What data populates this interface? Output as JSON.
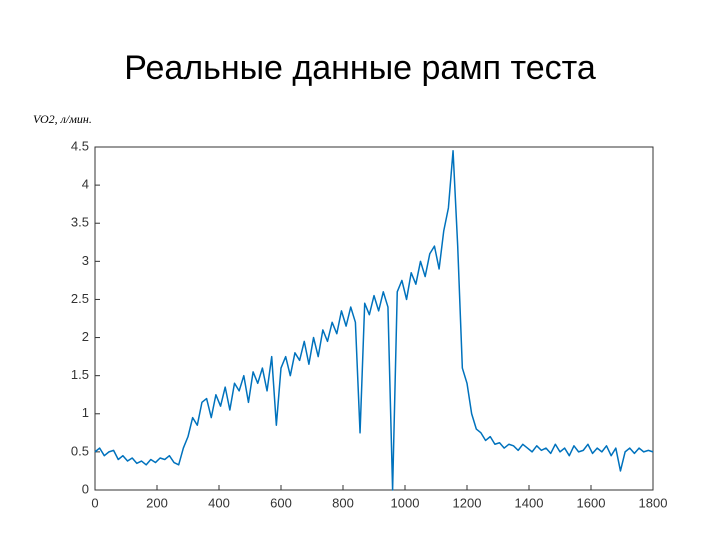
{
  "chart_data": {
    "type": "line",
    "title": "Реальные данные рамп теста",
    "y_label": "VO2, л/мин.",
    "x": [
      0,
      15,
      30,
      45,
      60,
      75,
      90,
      105,
      120,
      135,
      150,
      165,
      180,
      195,
      210,
      225,
      240,
      255,
      270,
      285,
      300,
      315,
      330,
      345,
      360,
      375,
      390,
      405,
      420,
      435,
      450,
      465,
      480,
      495,
      510,
      525,
      540,
      555,
      570,
      585,
      600,
      615,
      630,
      645,
      660,
      675,
      690,
      705,
      720,
      735,
      750,
      765,
      780,
      795,
      810,
      825,
      840,
      855,
      870,
      885,
      900,
      915,
      930,
      945,
      960,
      975,
      990,
      1005,
      1020,
      1035,
      1050,
      1065,
      1080,
      1095,
      1110,
      1125,
      1140,
      1155,
      1170,
      1185,
      1200,
      1215,
      1230,
      1245,
      1260,
      1275,
      1290,
      1305,
      1320,
      1335,
      1350,
      1365,
      1380,
      1395,
      1410,
      1425,
      1440,
      1455,
      1470,
      1485,
      1500,
      1515,
      1530,
      1545,
      1560,
      1575,
      1590,
      1605,
      1620,
      1635,
      1650,
      1665,
      1680,
      1695,
      1710,
      1725,
      1740,
      1755,
      1770,
      1785,
      1800
    ],
    "series": [
      {
        "name": "VO2",
        "color": "#0072bd",
        "values": [
          0.5,
          0.55,
          0.45,
          0.5,
          0.52,
          0.4,
          0.45,
          0.38,
          0.42,
          0.35,
          0.38,
          0.33,
          0.4,
          0.36,
          0.42,
          0.4,
          0.45,
          0.36,
          0.33,
          0.55,
          0.7,
          0.95,
          0.85,
          1.15,
          1.2,
          0.95,
          1.25,
          1.1,
          1.35,
          1.05,
          1.4,
          1.3,
          1.5,
          1.15,
          1.55,
          1.4,
          1.6,
          1.3,
          1.75,
          0.85,
          1.6,
          1.75,
          1.5,
          1.8,
          1.7,
          1.95,
          1.65,
          2.0,
          1.75,
          2.1,
          1.95,
          2.2,
          2.05,
          2.35,
          2.15,
          2.4,
          2.2,
          0.75,
          2.45,
          2.3,
          2.55,
          2.35,
          2.6,
          2.4,
          0,
          2.6,
          2.75,
          2.5,
          2.85,
          2.7,
          3.0,
          2.8,
          3.1,
          3.2,
          2.9,
          3.4,
          3.7,
          4.45,
          3.2,
          1.6,
          1.4,
          1.0,
          0.8,
          0.75,
          0.65,
          0.7,
          0.6,
          0.62,
          0.55,
          0.6,
          0.58,
          0.52,
          0.6,
          0.55,
          0.5,
          0.58,
          0.52,
          0.55,
          0.48,
          0.6,
          0.5,
          0.55,
          0.45,
          0.58,
          0.5,
          0.52,
          0.6,
          0.48,
          0.55,
          0.5,
          0.58,
          0.45,
          0.55,
          0.25,
          0.5,
          0.55,
          0.48,
          0.55,
          0.5,
          0.52,
          0.5
        ]
      }
    ],
    "xlim": [
      0,
      1800
    ],
    "ylim": [
      0,
      4.5
    ],
    "xticks": [
      0,
      200,
      400,
      600,
      800,
      1000,
      1200,
      1400,
      1600,
      1800
    ],
    "yticks": [
      0,
      0.5,
      1,
      1.5,
      2,
      2.5,
      3,
      3.5,
      4,
      4.5
    ],
    "grid": false
  }
}
